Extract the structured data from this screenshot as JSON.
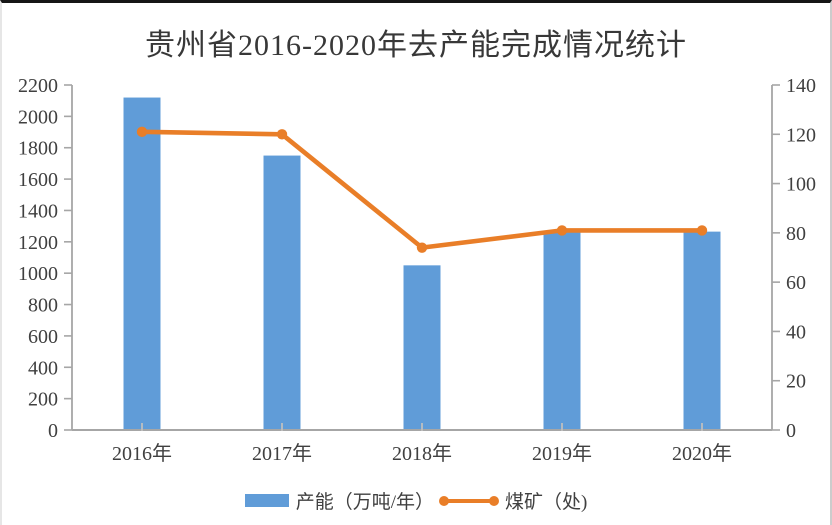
{
  "chart_data": {
    "type": "combo-bar-line",
    "title": "贵州省2016-2020年去产能完成情况统计",
    "categories": [
      "2016年",
      "2017年",
      "2018年",
      "2019年",
      "2020年"
    ],
    "series": [
      {
        "name": "产能（万吨/年）",
        "type": "bar",
        "axis": "left",
        "color": "#609CD8",
        "values": [
          2120,
          1750,
          1050,
          1260,
          1265
        ]
      },
      {
        "name": "煤矿（处)",
        "type": "line",
        "axis": "right",
        "color": "#E97E28",
        "values": [
          121,
          120,
          74,
          81,
          81
        ]
      }
    ],
    "left_axis": {
      "min": 0,
      "max": 2200,
      "step": 200,
      "ticks": [
        0,
        200,
        400,
        600,
        800,
        1000,
        1200,
        1400,
        1600,
        1800,
        2000,
        2200
      ]
    },
    "right_axis": {
      "min": 0,
      "max": 140,
      "step": 20,
      "ticks": [
        0,
        20,
        40,
        60,
        80,
        100,
        120,
        140
      ]
    },
    "grid": false,
    "legend_position": "bottom"
  }
}
